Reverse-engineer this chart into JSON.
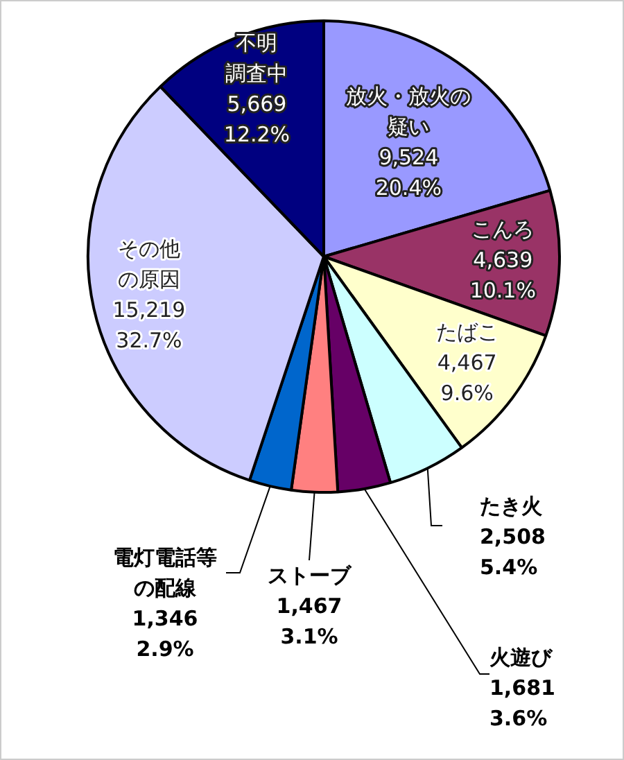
{
  "chart_data": {
    "type": "pie",
    "categories": [
      "放火・放火の疑い",
      "こんろ",
      "たばこ",
      "たき火",
      "火遊び",
      "ストーブ",
      "電灯電話等の配線",
      "その他の原因",
      "不明調査中"
    ],
    "values": [
      9524,
      4639,
      4467,
      2508,
      1681,
      1467,
      1346,
      15219,
      5669
    ],
    "colors": [
      "#9999ff",
      "#993366",
      "#ffffcc",
      "#ccffff",
      "#660066",
      "#ff8080",
      "#0066cc",
      "#ccccff",
      "#000080"
    ],
    "value_labels": [
      "9,524\n20.4%",
      "4,639\n10.1%",
      "4,467\n9.6%",
      "2,508\n5.4%",
      "1,681\n3.6%",
      "1,467\n3.1%",
      "1,346\n2.9%",
      "15,219\n32.7%",
      "5,669\n12.2%"
    ]
  }
}
